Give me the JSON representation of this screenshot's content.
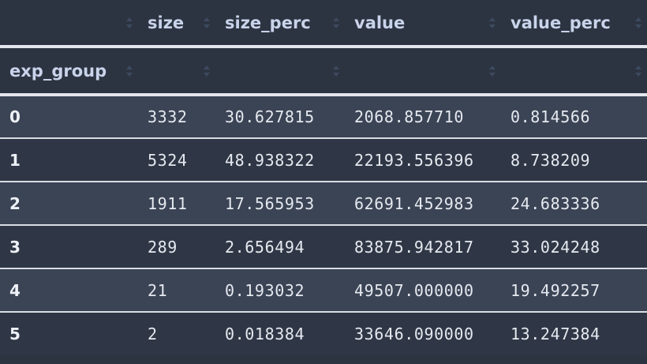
{
  "table": {
    "columns": [
      "",
      "size",
      "size_perc",
      "value",
      "value_perc"
    ],
    "index_name": "exp_group",
    "rows": [
      {
        "index": "0",
        "size": "3332",
        "size_perc": "30.627815",
        "value": "2068.857710",
        "value_perc": "0.814566"
      },
      {
        "index": "1",
        "size": "5324",
        "size_perc": "48.938322",
        "value": "22193.556396",
        "value_perc": "8.738209"
      },
      {
        "index": "2",
        "size": "1911",
        "size_perc": "17.565953",
        "value": "62691.452983",
        "value_perc": "24.683336"
      },
      {
        "index": "3",
        "size": "289",
        "size_perc": "2.656494",
        "value": "83875.942817",
        "value_perc": "33.024248"
      },
      {
        "index": "4",
        "size": "21",
        "size_perc": "0.193032",
        "value": "49507.000000",
        "value_perc": "19.492257"
      },
      {
        "index": "5",
        "size": "2",
        "size_perc": "0.018384",
        "value": "33646.090000",
        "value_perc": "13.247384"
      }
    ]
  },
  "colors": {
    "background": "#2c3442",
    "row_odd": "#3a4455",
    "row_even": "#2f3746",
    "header_text": "#c9d3ea",
    "divider": "#e3e6ec"
  }
}
